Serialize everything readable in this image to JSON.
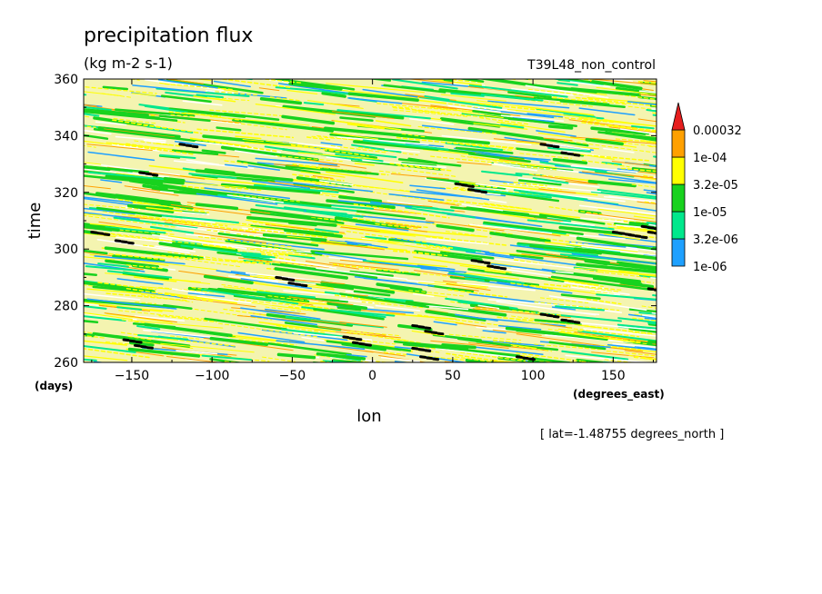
{
  "chart_data": {
    "type": "heatmap",
    "title": "precipitation flux",
    "units": "(kg m-2 s-1)",
    "dataset": "T39L48_non_control",
    "xlabel": "lon",
    "x_unit": "(degrees_east)",
    "ylabel": "time",
    "y_unit": "(days)",
    "slice_note": "[ lat=-1.48755 degrees_north ]",
    "xlim": [
      -180,
      177
    ],
    "ylim": [
      260,
      360
    ],
    "x_ticks": [
      -150,
      -100,
      -50,
      0,
      50,
      100,
      150
    ],
    "x_tick_labels": [
      "−150",
      "−100",
      "−50",
      "0",
      "50",
      "100",
      "150"
    ],
    "y_ticks": [
      260,
      280,
      300,
      320,
      340,
      360
    ],
    "y_tick_labels": [
      "260",
      "280",
      "300",
      "320",
      "340",
      "360"
    ],
    "colorbar": {
      "levels": [
        "1e-06",
        "3.2e-06",
        "1e-05",
        "3.2e-05",
        "1e-04",
        "0.00032"
      ],
      "colors": [
        "#1ea0ff",
        "#00e88c",
        "#18d21e",
        "#ffff00",
        "#ffa000",
        "#e61e1e"
      ]
    },
    "features": "westward-propagating precipitation streaks; black marks = values above 0.00032"
  }
}
